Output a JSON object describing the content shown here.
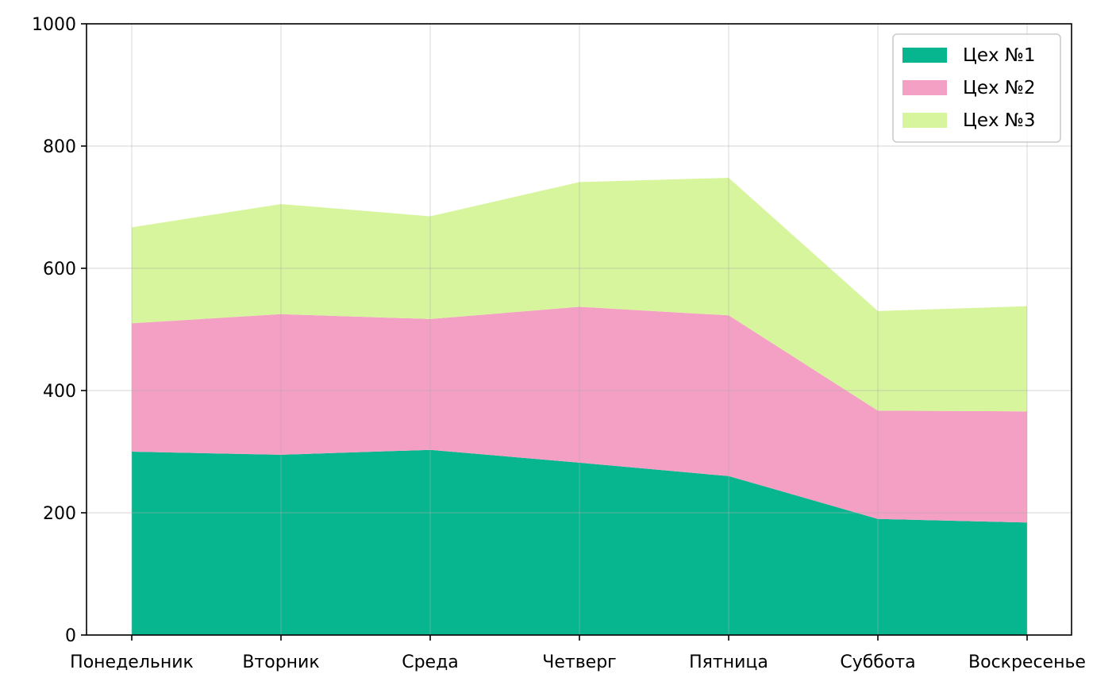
{
  "chart_data": {
    "type": "area",
    "stacked": true,
    "categories": [
      "Понедельник",
      "Вторник",
      "Среда",
      "Четверг",
      "Пятница",
      "Суббота",
      "Воскресенье"
    ],
    "series": [
      {
        "name": "Цех №1",
        "values": [
          300,
          295,
          303,
          282,
          260,
          190,
          184
        ],
        "color": "#07b68f"
      },
      {
        "name": "Цех №2",
        "values": [
          210,
          230,
          214,
          255,
          263,
          177,
          182
        ],
        "color": "#f49fc4"
      },
      {
        "name": "Цех №3",
        "values": [
          157,
          180,
          168,
          204,
          225,
          163,
          172
        ],
        "color": "#d7f59c"
      }
    ],
    "ylim": [
      0,
      1000
    ],
    "yticks": [
      "0",
      "200",
      "400",
      "600",
      "800",
      "1000"
    ],
    "title": "",
    "xlabel": "",
    "ylabel": "",
    "grid": true,
    "legend": "top-right"
  }
}
